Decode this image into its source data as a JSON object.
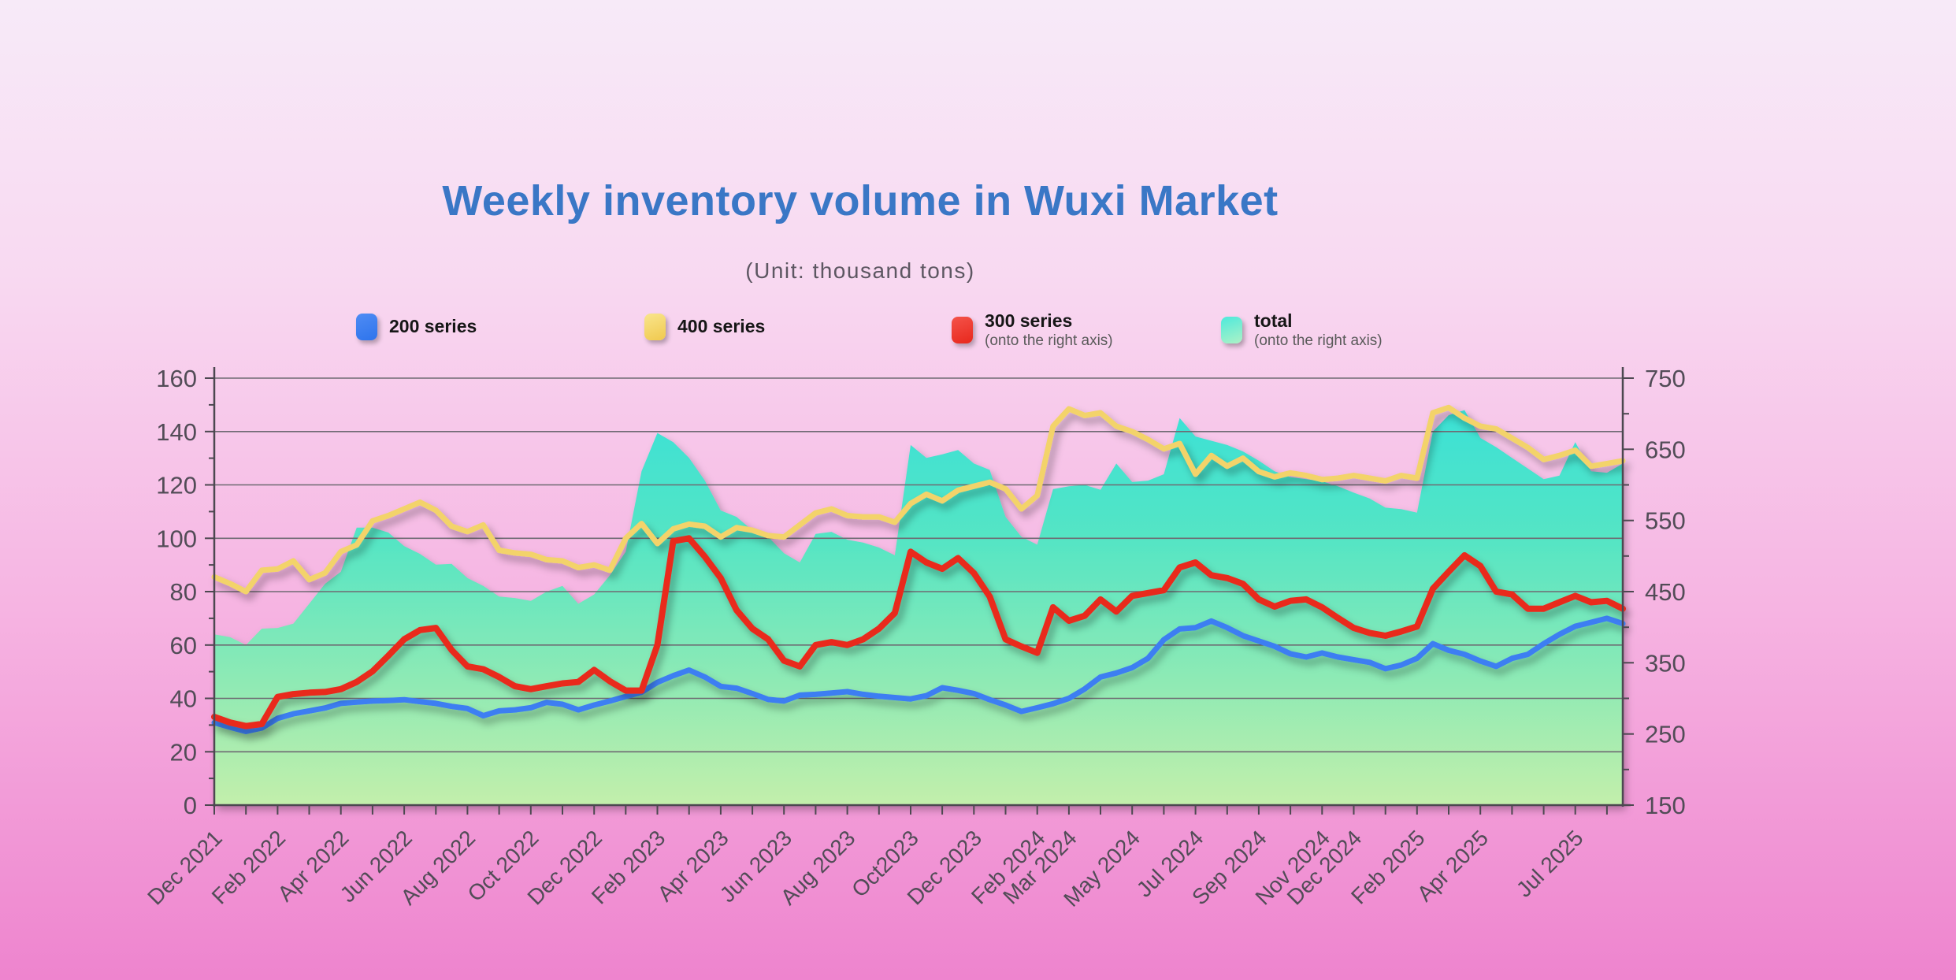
{
  "title": "Weekly inventory volume in Wuxi Market",
  "subtitle": "(Unit: thousand tons)",
  "theme": {
    "title_color": "#3a77c6",
    "background_top": "#f7eaf8",
    "background_bottom": "#ee84ce",
    "grid_color": "#6e6a72",
    "axis_text_color": "#524c57"
  },
  "legend": [
    {
      "label": "200 series",
      "sublabel": "",
      "color": "#2e74ec",
      "color2": "#4f8cf4"
    },
    {
      "label": "400 series",
      "sublabel": "",
      "color": "#f0c94e",
      "color2": "#f9e58d"
    },
    {
      "label": "300 series",
      "sublabel": "(onto the right axis)",
      "color": "#e8271c",
      "color2": "#f4534a"
    },
    {
      "label": "total",
      "sublabel": "(onto the right axis)",
      "color": "#aef2c6",
      "color2": "#4de9dc"
    }
  ],
  "chart_data": {
    "type": "line",
    "title": "Weekly inventory volume in Wuxi Market",
    "subtitle": "(Unit: thousand tons)",
    "grid": "horizontal",
    "legend_position": "top",
    "left_axis": {
      "min": 0,
      "max": 160,
      "tick_step": 20,
      "ticks": [
        0,
        20,
        40,
        60,
        80,
        100,
        120,
        140,
        160
      ]
    },
    "right_axis": {
      "min": 150,
      "max": 750,
      "tick_step": 100,
      "ticks": [
        150,
        250,
        350,
        450,
        550,
        650,
        750
      ]
    },
    "x_axis": {
      "start": "Dec 2021",
      "end": "Aug 2025",
      "span_months": 44.5,
      "labels": [
        {
          "text": "Dec 2021",
          "month": 0
        },
        {
          "text": "Feb 2022",
          "month": 2
        },
        {
          "text": "Apr 2022",
          "month": 4
        },
        {
          "text": "Jun 2022",
          "month": 6
        },
        {
          "text": "Aug 2022",
          "month": 8
        },
        {
          "text": "Oct 2022",
          "month": 10
        },
        {
          "text": "Dec 2022",
          "month": 12
        },
        {
          "text": "Feb 2023",
          "month": 14
        },
        {
          "text": "Apr 2023",
          "month": 16
        },
        {
          "text": "Jun 2023",
          "month": 18
        },
        {
          "text": "Aug 2023",
          "month": 20
        },
        {
          "text": "Oct2023",
          "month": 22
        },
        {
          "text": "Dec 2023",
          "month": 24
        },
        {
          "text": "Feb 2024",
          "month": 26
        },
        {
          "text": "Mar 2024",
          "month": 27
        },
        {
          "text": "May 2024",
          "month": 29
        },
        {
          "text": "Jul 2024",
          "month": 31
        },
        {
          "text": "Sep 2024",
          "month": 33
        },
        {
          "text": "Nov 2024",
          "month": 35
        },
        {
          "text": "Dec 2024",
          "month": 36
        },
        {
          "text": "Feb 2025",
          "month": 38
        },
        {
          "text": "Apr 2025",
          "month": 40
        },
        {
          "text": "Jul 2025",
          "month": 43
        }
      ]
    },
    "sample_step_months": 0.5,
    "series": [
      {
        "name": "200 series",
        "axis": "left",
        "kind": "line",
        "color": "#3c7ef2",
        "width": 7,
        "values": [
          30.9,
          29.2,
          27.6,
          28.9,
          32.5,
          34.2,
          35.3,
          36.4,
          38.1,
          38.6,
          39,
          39.2,
          39.5,
          38.8,
          38.1,
          37,
          36.2,
          33.5,
          35.3,
          35.7,
          36.5,
          38.5,
          37.8,
          35.7,
          37.5,
          39,
          40.7,
          42.3,
          46,
          48.5,
          50.6,
          48,
          44.5,
          43.8,
          41.8,
          39.6,
          39,
          41.2,
          41.5,
          42,
          42.5,
          41.5,
          40.8,
          40.3,
          39.8,
          41,
          44,
          43,
          41.8,
          39.5,
          37.5,
          35.1,
          36.5,
          38,
          40,
          43.5,
          48,
          49.5,
          51.5,
          55,
          62,
          66,
          66.5,
          69,
          66.5,
          63.5,
          61.5,
          59.5,
          56.7,
          55.5,
          57,
          55.5,
          54.5,
          53.5,
          51.1,
          52.5,
          55,
          60.5,
          58,
          56.5,
          54,
          52,
          55,
          56.5,
          60.5,
          64,
          67,
          68.5,
          70,
          68
        ]
      },
      {
        "name": "400 series",
        "axis": "left",
        "kind": "line",
        "color": "#f3d36a",
        "width": 7,
        "values": [
          85.5,
          83,
          80,
          88,
          88.5,
          91.5,
          84.5,
          87,
          95,
          97.5,
          106.5,
          108.5,
          111,
          113.5,
          110.5,
          104.5,
          102.5,
          105,
          95.5,
          94.5,
          94,
          92,
          91.5,
          89,
          90,
          88,
          100,
          105.5,
          98,
          103.5,
          105.3,
          104.5,
          100.5,
          104,
          103,
          101,
          100.5,
          105,
          109.5,
          111,
          108.5,
          108,
          108,
          106,
          113,
          116.5,
          114,
          118,
          119.5,
          121,
          118.5,
          111,
          116,
          142,
          148.5,
          146,
          147,
          142,
          140,
          137,
          133.5,
          135.5,
          124,
          131,
          127,
          130,
          125,
          123,
          124.5,
          123.5,
          122,
          122.5,
          123.5,
          122.5,
          121.5,
          123.5,
          122.5,
          147,
          149,
          145,
          142,
          141,
          137.5,
          134,
          129.5,
          131,
          133,
          127,
          128,
          129
        ]
      },
      {
        "name": "300 series",
        "axis": "right",
        "kind": "line",
        "color": "#e92a1f",
        "width": 8,
        "values": [
          274,
          266,
          261,
          264,
          302,
          306,
          308,
          309,
          313,
          323,
          338,
          360,
          383,
          396,
          399,
          368,
          345,
          341,
          330,
          317,
          313,
          317,
          321,
          323,
          340,
          324,
          311,
          311,
          375,
          521,
          525,
          499,
          469,
          424,
          398,
          383,
          353,
          345,
          375,
          379,
          375,
          383,
          398,
          420,
          506,
          491,
          482,
          497,
          476,
          443,
          383,
          373,
          364,
          428,
          409,
          416,
          439,
          422,
          444,
          448,
          452,
          484,
          491,
          473,
          469,
          461,
          439,
          429,
          437,
          439,
          428,
          413,
          399,
          392,
          388,
          394,
          401,
          454,
          478,
          501,
          486,
          450,
          446,
          426,
          426,
          435,
          444,
          435,
          437,
          426
        ]
      },
      {
        "name": "total",
        "axis": "right",
        "kind": "area",
        "color": "#35e0da",
        "values": [
          390,
          386,
          375,
          398,
          399,
          405,
          433,
          461,
          478,
          540,
          540,
          533,
          514,
          503,
          488,
          489,
          469,
          458,
          443,
          441,
          437,
          450,
          458,
          433,
          446,
          473,
          506,
          619,
          673,
          660,
          638,
          606,
          564,
          555,
          536,
          527,
          504,
          491,
          531,
          534,
          523,
          519,
          512,
          501,
          656,
          638,
          643,
          649,
          630,
          621,
          555,
          527,
          516,
          594,
          598,
          600,
          593,
          630,
          604,
          606,
          615,
          694,
          668,
          662,
          656,
          647,
          634,
          619,
          611,
          608,
          605,
          598,
          589,
          581,
          568,
          566,
          561,
          675,
          698,
          705,
          666,
          653,
          638,
          623,
          608,
          613,
          660,
          619,
          617,
          630
        ]
      }
    ]
  }
}
